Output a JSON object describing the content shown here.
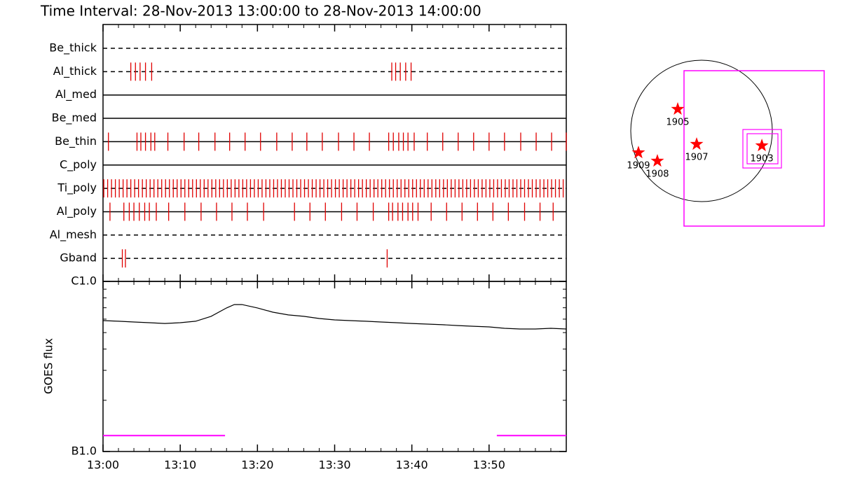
{
  "chart_data": [
    {
      "type": "event",
      "title": "Time Interval: 28-Nov-2013 13:00:00 to 28-Nov-2013 14:00:00",
      "xlim": [
        0,
        60
      ],
      "color": "#e00000",
      "categories": [
        "Be_thick",
        "Al_thick",
        "Al_med",
        "Be_med",
        "Be_thin",
        "C_poly",
        "Ti_poly",
        "Al_poly",
        "Al_mesh",
        "Gband"
      ],
      "line_styles": [
        "dashed",
        "dashed",
        "solid",
        "solid",
        "solid",
        "solid",
        "dashed",
        "solid",
        "dashed",
        "dashed"
      ],
      "events": [
        [],
        [
          3.6,
          4.2,
          4.8,
          5.5,
          6.3,
          37.4,
          37.9,
          38.5,
          39.2,
          39.9
        ],
        [],
        [],
        [
          0.7,
          4.4,
          4.9,
          5.5,
          6.2,
          6.7,
          8.4,
          10.5,
          12.4,
          14.5,
          16.4,
          18.4,
          20.4,
          22.5,
          24.5,
          26.4,
          28.4,
          30.5,
          32.5,
          34.5,
          37.0,
          37.6,
          38.3,
          38.9,
          39.5,
          40.3,
          42.0,
          44.0,
          46.0,
          48.0,
          50.0,
          52.0,
          54.1,
          56.1,
          58.1,
          60.0
        ],
        [],
        [
          0.1,
          0.6,
          1.1,
          1.6,
          2.1,
          2.6,
          3.1,
          3.6,
          4.1,
          4.6,
          5.1,
          5.6,
          6.1,
          6.6,
          7.1,
          7.6,
          8.1,
          8.6,
          9.1,
          9.6,
          10.1,
          10.6,
          11.1,
          11.6,
          12.1,
          12.6,
          13.1,
          13.6,
          14.1,
          14.6,
          15.1,
          15.6,
          16.1,
          16.6,
          17.1,
          17.6,
          18.1,
          18.6,
          19.1,
          19.6,
          20.1,
          20.6,
          21.1,
          21.6,
          22.1,
          22.6,
          23.1,
          23.6,
          24.1,
          24.6,
          25.1,
          25.6,
          26.1,
          26.6,
          27.1,
          27.6,
          28.1,
          28.6,
          29.1,
          29.6,
          30.1,
          30.6,
          31.1,
          31.6,
          32.1,
          32.6,
          33.1,
          33.6,
          34.1,
          34.6,
          35.1,
          35.6,
          36.1,
          36.6,
          37.1,
          37.6,
          38.1,
          38.6,
          39.1,
          39.6,
          40.1,
          40.6,
          41.1,
          41.6,
          42.1,
          42.6,
          43.1,
          43.6,
          44.1,
          44.6,
          45.1,
          45.6,
          46.1,
          46.6,
          47.1,
          47.6,
          48.1,
          48.6,
          49.1,
          49.6,
          50.1,
          50.6,
          51.1,
          51.6,
          52.1,
          52.6,
          53.1,
          53.6,
          54.1,
          54.6,
          55.1,
          55.6,
          56.1,
          56.6,
          57.1,
          57.6,
          58.1,
          58.6,
          59.1,
          59.6
        ],
        [
          0.9,
          2.7,
          3.4,
          4.0,
          4.7,
          5.4,
          6.0,
          6.9,
          8.5,
          10.6,
          12.7,
          14.7,
          16.7,
          18.7,
          20.8,
          24.8,
          26.8,
          28.8,
          30.9,
          32.9,
          35.0,
          37.0,
          37.5,
          38.2,
          38.8,
          39.5,
          40.1,
          40.8,
          42.5,
          44.5,
          46.5,
          48.5,
          50.5,
          52.5,
          54.6,
          56.6,
          58.3
        ],
        [],
        [
          2.5,
          2.9,
          36.8
        ]
      ]
    },
    {
      "type": "line",
      "ylabel": "GOES flux",
      "xlim": [
        0,
        60
      ],
      "xticks": [
        {
          "value": 0,
          "label": "13:00"
        },
        {
          "value": 10,
          "label": "13:10"
        },
        {
          "value": 20,
          "label": "13:20"
        },
        {
          "value": 30,
          "label": "13:30"
        },
        {
          "value": 40,
          "label": "13:40"
        },
        {
          "value": 50,
          "label": "13:50"
        }
      ],
      "minor_xticks": [
        2,
        4,
        6,
        8,
        12,
        14,
        16,
        18,
        22,
        24,
        26,
        28,
        32,
        34,
        36,
        38,
        42,
        44,
        46,
        48,
        52,
        54,
        56,
        58
      ],
      "ylim": [
        1e-07,
        1e-06
      ],
      "log_y": true,
      "yticks": [
        {
          "value": 1e-07,
          "label": "B1.0"
        },
        {
          "value": 1e-06,
          "label": "C1.0"
        }
      ],
      "minor_yticks": [
        2e-07,
        3e-07,
        4e-07,
        5e-07,
        6e-07,
        7e-07,
        8e-07,
        9e-07
      ],
      "series": [
        {
          "color": "#000000",
          "x": [
            0,
            2,
            4,
            6,
            8,
            10,
            12,
            14,
            16,
            17,
            18,
            20,
            22,
            24,
            26,
            28,
            30,
            32,
            34,
            36,
            38,
            40,
            42,
            44,
            46,
            48,
            50,
            52,
            54,
            56,
            58,
            60
          ],
          "values": [
            5.88e-07,
            5.83e-07,
            5.77e-07,
            5.72e-07,
            5.66e-07,
            5.72e-07,
            5.83e-07,
            6.23e-07,
            6.98e-07,
            7.31e-07,
            7.31e-07,
            6.98e-07,
            6.59e-07,
            6.35e-07,
            6.23e-07,
            6.05e-07,
            5.94e-07,
            5.88e-07,
            5.83e-07,
            5.77e-07,
            5.72e-07,
            5.66e-07,
            5.61e-07,
            5.56e-07,
            5.5e-07,
            5.45e-07,
            5.4e-07,
            5.3e-07,
            5.25e-07,
            5.25e-07,
            5.3e-07,
            5.25e-07
          ]
        },
        {
          "color": "#ff00ff",
          "x": [
            0,
            15.8,
            33,
            51,
            60
          ],
          "values": [
            1.24e-07,
            1.24e-07,
            null,
            1.24e-07,
            1.24e-07
          ]
        }
      ]
    },
    {
      "type": "scatter",
      "xlim": [
        -1000,
        1000
      ],
      "ylim": [
        -1000,
        1000
      ],
      "color": "#ff0000",
      "labels": [
        "1905",
        "1907",
        "1909",
        "1908",
        "1903"
      ],
      "x": [
        -326,
        -67,
        -864,
        -605,
        826
      ],
      "values": [
        298,
        -182,
        -298,
        -413,
        -202
      ]
    }
  ]
}
